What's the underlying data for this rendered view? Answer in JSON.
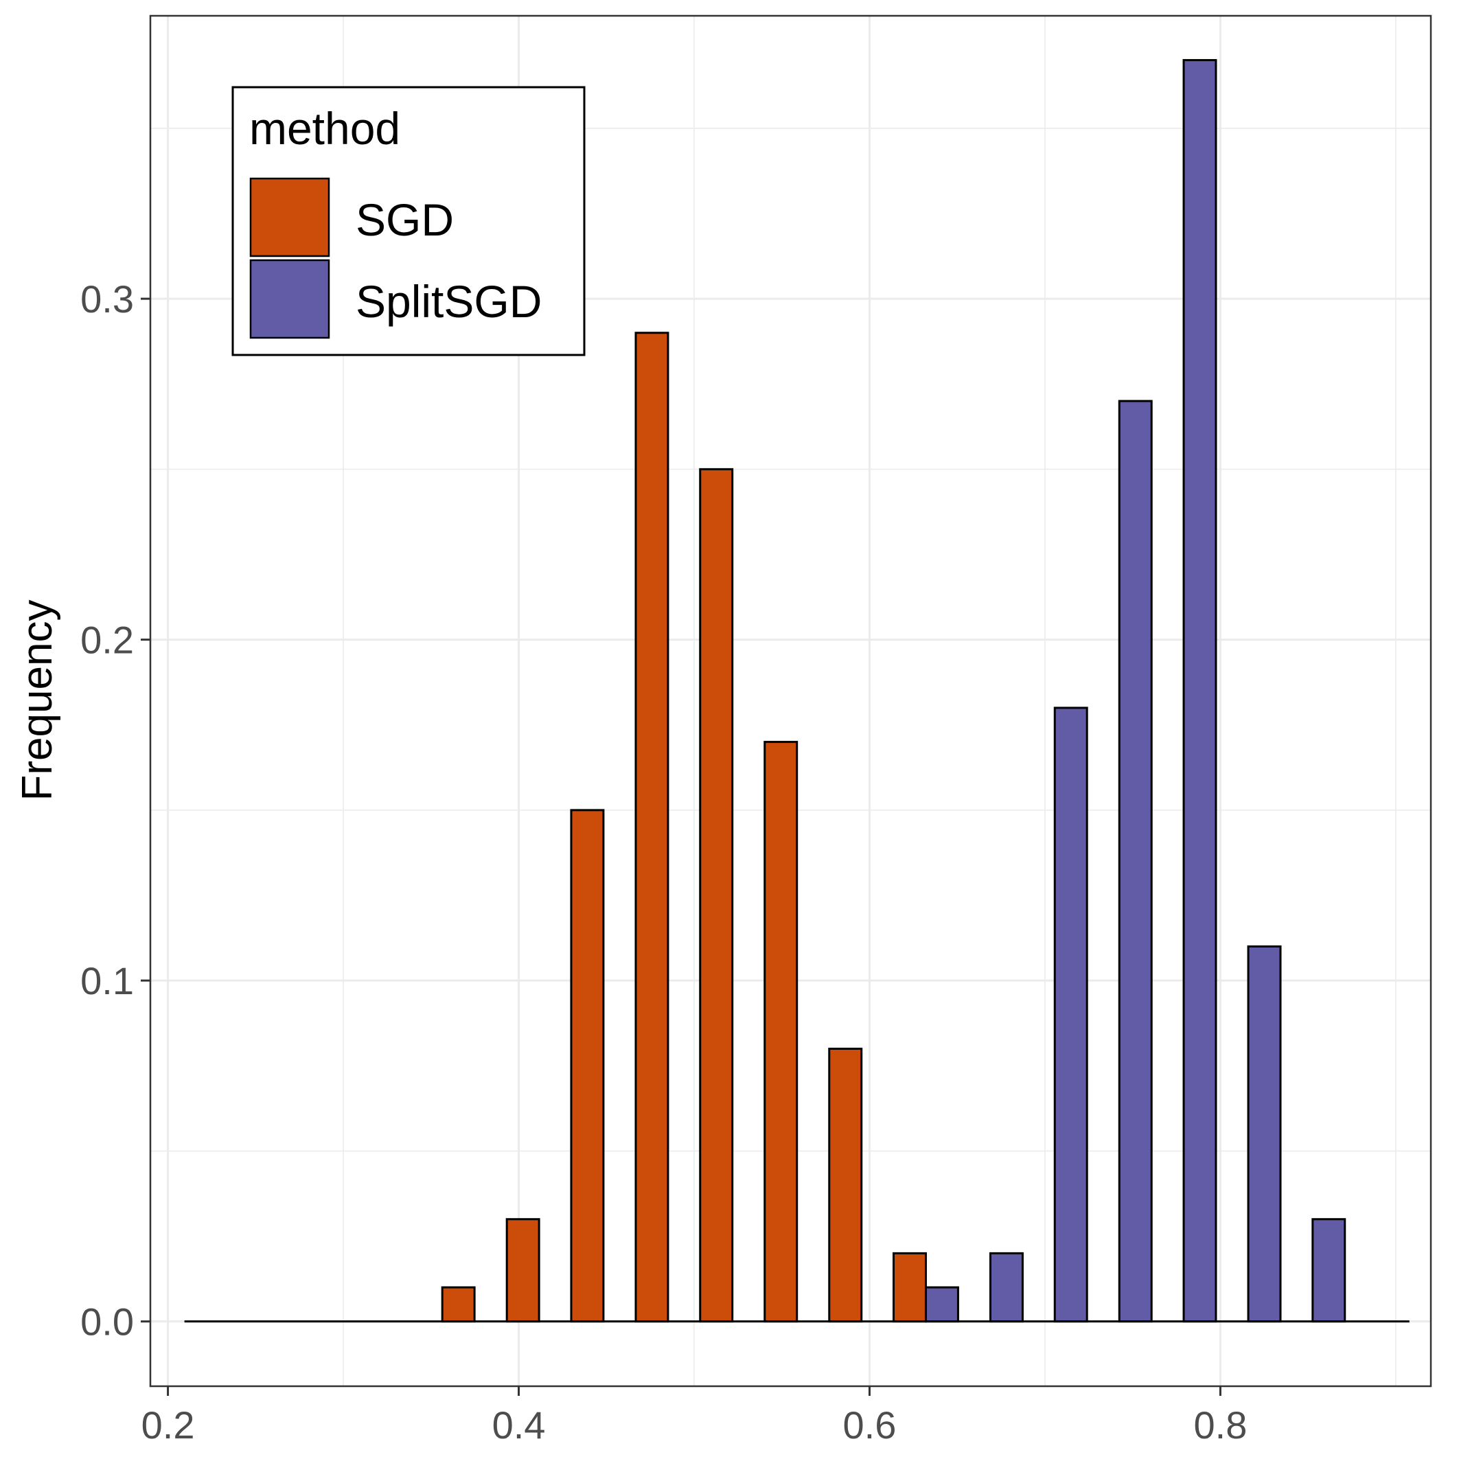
{
  "chart_data": {
    "type": "bar",
    "title": "",
    "xlabel": "",
    "ylabel": "Frequency",
    "xlim": [
      0.19,
      0.92
    ],
    "ylim": [
      -0.019,
      0.383
    ],
    "x_ticks": [
      "0.2",
      "0.4",
      "0.6",
      "0.8"
    ],
    "x_tick_values": [
      0.2,
      0.4,
      0.6,
      0.8
    ],
    "y_ticks": [
      "0.0",
      "0.1",
      "0.2",
      "0.3"
    ],
    "y_tick_values": [
      0.0,
      0.1,
      0.2,
      0.3
    ],
    "grid": true,
    "bin_width": 0.03675,
    "legend": {
      "title": "method",
      "position": "top-left",
      "entries": [
        "SGD",
        "SplitSGD"
      ]
    },
    "series": [
      {
        "name": "SGD",
        "color": "#CC4C0A",
        "x": [
          0.2278,
          0.2646,
          0.3013,
          0.3381,
          0.3748,
          0.4116,
          0.4483,
          0.4851,
          0.5218,
          0.5586,
          0.5954,
          0.6321
        ],
        "values": [
          0,
          0,
          0,
          0,
          0.01,
          0.03,
          0.15,
          0.29,
          0.25,
          0.17,
          0.08,
          0.02
        ]
      },
      {
        "name": "SplitSGD",
        "color": "#625BA5",
        "x": [
          0.6321,
          0.6689,
          0.7056,
          0.7424,
          0.7791,
          0.8159,
          0.8526,
          0.8894
        ],
        "values": [
          0.01,
          0.02,
          0.18,
          0.27,
          0.37,
          0.11,
          0.03,
          0
        ]
      }
    ]
  }
}
